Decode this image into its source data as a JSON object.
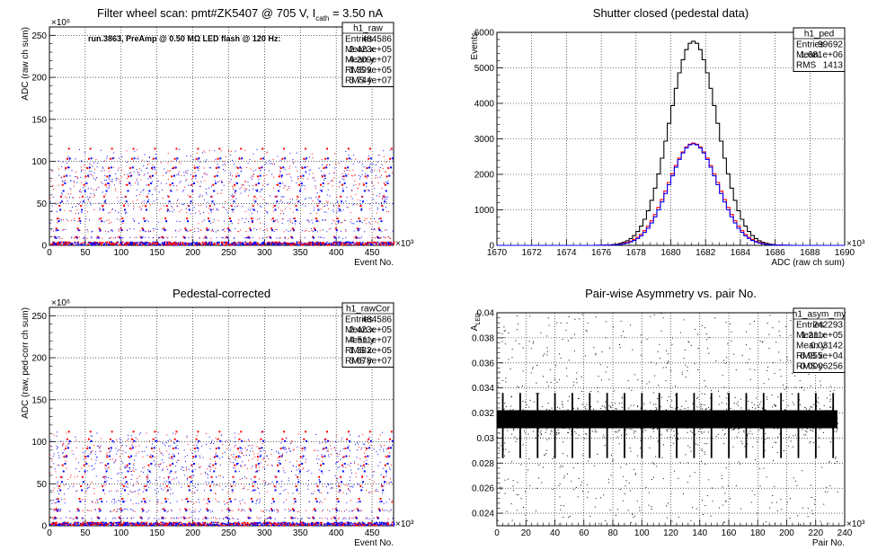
{
  "chart_data": [
    {
      "type": "scatter",
      "title_parts": [
        "Filter wheel scan: pmt#ZK5407 @  705 V, I",
        "cath",
        " = 3.50 nA"
      ],
      "annotation": "run.3863, PreAmp @ 0.50 MΩ LED flash @  120 Hz:",
      "xlabel": "Event No.",
      "ylabel": "ADC (raw ch sum)",
      "x_exponent": "×10³",
      "y_exponent": "×10⁶",
      "xlim": [
        0,
        480
      ],
      "ylim": [
        0,
        260
      ],
      "xticks": [
        "0",
        "50",
        "100",
        "150",
        "200",
        "250",
        "300",
        "350",
        "400",
        "450"
      ],
      "yticks": [
        "0",
        "50",
        "100",
        "150",
        "200",
        "250"
      ],
      "grid": true,
      "step_levels": [
        2,
        10,
        20,
        32,
        47,
        58,
        72,
        82,
        92,
        103,
        115
      ],
      "step_period": 30,
      "stats": {
        "name": "h1_raw",
        "rows": [
          [
            "Entries",
            "484586"
          ],
          [
            "Mean x",
            "2.423e+05"
          ],
          [
            "Mean y",
            "4.209e+07"
          ],
          [
            "RMS x",
            "1.399e+05"
          ],
          [
            "RMS y",
            "3.744e+07"
          ]
        ]
      }
    },
    {
      "type": "line",
      "title_parts": [
        "Shutter closed (pedestal data)"
      ],
      "xlabel": "ADC (raw ch sum)",
      "ylabel": "Events",
      "x_exponent": "×10³",
      "xlim": [
        1670,
        1690
      ],
      "ylim": [
        0,
        6000
      ],
      "xticks": [
        "1670",
        "1672",
        "1674",
        "1676",
        "1678",
        "1680",
        "1682",
        "1684",
        "1686",
        "1688",
        "1690"
      ],
      "yticks": [
        "0",
        "1000",
        "2000",
        "3000",
        "4000",
        "5000",
        "6000"
      ],
      "grid": true,
      "series": [
        {
          "color": "#000000",
          "mean": 1681.3,
          "sigma": 1.38,
          "peak": 5750
        },
        {
          "color": "#ff0000",
          "mean": 1681.3,
          "sigma": 1.42,
          "peak": 2880
        },
        {
          "color": "#0000ff",
          "mean": 1681.3,
          "sigma": 1.38,
          "peak": 2860
        }
      ],
      "stats": {
        "name": "h1_ped",
        "rows": [
          [
            "Entries",
            "99692"
          ],
          [
            "Mean",
            "1.681e+06"
          ],
          [
            "RMS",
            "1413"
          ]
        ]
      }
    },
    {
      "type": "scatter",
      "title_parts": [
        "Pedestal-corrected"
      ],
      "xlabel": "Event No.",
      "ylabel": "ADC (raw, ped-corr ch sum)",
      "x_exponent": "×10³",
      "y_exponent": "×10⁶",
      "xlim": [
        0,
        480
      ],
      "ylim": [
        0,
        260
      ],
      "xticks": [
        "0",
        "50",
        "100",
        "150",
        "200",
        "250",
        "300",
        "350",
        "400",
        "450"
      ],
      "yticks": [
        "0",
        "50",
        "100",
        "150",
        "200",
        "250"
      ],
      "grid": true,
      "step_levels": [
        2,
        10,
        20,
        32,
        47,
        58,
        72,
        82,
        92,
        103,
        112
      ],
      "step_period": 30,
      "stats": {
        "name": "h1_rawCor",
        "rows": [
          [
            "Entries",
            "484586"
          ],
          [
            "Mean x",
            "2.423e+05"
          ],
          [
            "Mean y",
            "4.511e+07"
          ],
          [
            "RMS x",
            "1.382e+05"
          ],
          [
            "RMS y",
            "3.678e+07"
          ]
        ]
      }
    },
    {
      "type": "scatter",
      "title_parts": [
        "Pair-wise Asymmetry vs. pair No."
      ],
      "xlabel": "Pair No.",
      "ylabel": "A",
      "ylabel_sub": "LED",
      "x_exponent": "×10³",
      "xlim": [
        0,
        240
      ],
      "ylim": [
        0.023,
        0.04
      ],
      "xticks": [
        "0",
        "20",
        "40",
        "60",
        "80",
        "100",
        "120",
        "140",
        "160",
        "180",
        "200",
        "220",
        "240"
      ],
      "yticks": [
        "0.024",
        "0.026",
        "0.028",
        "0.03",
        "0.032",
        "0.034",
        "0.036",
        "0.038",
        "0.04"
      ],
      "grid": true,
      "band_center": 0.0315,
      "band_halfwidth": 0.0008,
      "spike_period": 12,
      "stats": {
        "name": "h1_asym_my",
        "rows": [
          [
            "Entries",
            "242293"
          ],
          [
            "Mean x",
            "1.211e+05"
          ],
          [
            "Mean y",
            "0.03142"
          ],
          [
            "RMS x",
            "6.955e+04"
          ],
          [
            "RMS y",
            "0.0006256"
          ]
        ]
      }
    }
  ]
}
